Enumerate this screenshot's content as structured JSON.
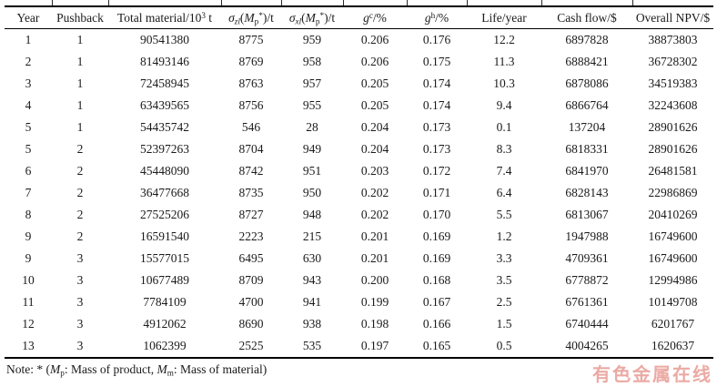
{
  "table": {
    "columns": [
      {
        "name": "year",
        "parts": [
          {
            "t": "Year"
          }
        ]
      },
      {
        "name": "pushback",
        "parts": [
          {
            "t": "Pushback"
          }
        ]
      },
      {
        "name": "total-material",
        "parts": [
          {
            "t": "Total material/10"
          },
          {
            "t": "3",
            "s": "sup"
          },
          {
            "t": " t"
          }
        ]
      },
      {
        "name": "sigma-zl",
        "parts": [
          {
            "t": "σ",
            "s": "i"
          },
          {
            "t": "zl",
            "s": "subi"
          },
          {
            "t": "("
          },
          {
            "t": "M",
            "s": "i"
          },
          {
            "t": "p",
            "s": "sub"
          },
          {
            "t": "*",
            "s": "sup"
          },
          {
            "t": ")/t"
          }
        ]
      },
      {
        "name": "sigma-xl",
        "parts": [
          {
            "t": "σ",
            "s": "i"
          },
          {
            "t": "xl",
            "s": "subi"
          },
          {
            "t": "("
          },
          {
            "t": "M",
            "s": "i"
          },
          {
            "t": "p",
            "s": "sub"
          },
          {
            "t": "*",
            "s": "sup"
          },
          {
            "t": ")/t"
          }
        ]
      },
      {
        "name": "grade-c",
        "parts": [
          {
            "t": "g",
            "s": "i"
          },
          {
            "t": "c",
            "s": "sup"
          },
          {
            "t": "/%"
          }
        ]
      },
      {
        "name": "grade-h",
        "parts": [
          {
            "t": "g",
            "s": "i"
          },
          {
            "t": "h",
            "s": "sup"
          },
          {
            "t": "/%"
          }
        ]
      },
      {
        "name": "life",
        "parts": [
          {
            "t": "Life/year"
          }
        ]
      },
      {
        "name": "cash-flow",
        "parts": [
          {
            "t": "Cash flow/$"
          }
        ]
      },
      {
        "name": "overall-npv",
        "parts": [
          {
            "t": "Overall NPV/$"
          }
        ]
      }
    ],
    "rows": [
      [
        "1",
        "1",
        "90541380",
        "8775",
        "959",
        "0.206",
        "0.176",
        "12.2",
        "6897828",
        "38873803"
      ],
      [
        "2",
        "1",
        "81493146",
        "8769",
        "958",
        "0.206",
        "0.175",
        "11.3",
        "6888421",
        "36728302"
      ],
      [
        "3",
        "1",
        "72458945",
        "8763",
        "957",
        "0.205",
        "0.174",
        "10.3",
        "6878086",
        "34519383"
      ],
      [
        "4",
        "1",
        "63439565",
        "8756",
        "955",
        "0.205",
        "0.174",
        "9.4",
        "6866764",
        "32243608"
      ],
      [
        "5",
        "1",
        "54435742",
        "546",
        "28",
        "0.204",
        "0.173",
        "0.1",
        "137204",
        "28901626"
      ],
      [
        "5",
        "2",
        "52397263",
        "8704",
        "949",
        "0.204",
        "0.173",
        "8.3",
        "6818331",
        "28901626"
      ],
      [
        "6",
        "2",
        "45448090",
        "8742",
        "951",
        "0.203",
        "0.172",
        "7.4",
        "6841970",
        "26481581"
      ],
      [
        "7",
        "2",
        "36477668",
        "8735",
        "950",
        "0.202",
        "0.171",
        "6.4",
        "6828143",
        "22986869"
      ],
      [
        "8",
        "2",
        "27525206",
        "8727",
        "948",
        "0.202",
        "0.170",
        "5.5",
        "6813067",
        "20410269"
      ],
      [
        "9",
        "2",
        "16591540",
        "2223",
        "215",
        "0.201",
        "0.169",
        "1.2",
        "1947988",
        "16749600"
      ],
      [
        "9",
        "3",
        "15577015",
        "6495",
        "630",
        "0.201",
        "0.169",
        "3.3",
        "4709361",
        "16749600"
      ],
      [
        "10",
        "3",
        "10677489",
        "8709",
        "943",
        "0.200",
        "0.168",
        "3.5",
        "6778872",
        "12994986"
      ],
      [
        "11",
        "3",
        "7784109",
        "4700",
        "941",
        "0.199",
        "0.167",
        "2.5",
        "6761361",
        "10149708"
      ],
      [
        "12",
        "3",
        "4912062",
        "8690",
        "938",
        "0.198",
        "0.166",
        "1.5",
        "6740444",
        "6201767"
      ],
      [
        "13",
        "3",
        "1062399",
        "2525",
        "535",
        "0.197",
        "0.165",
        "0.5",
        "4004265",
        "1620637"
      ]
    ]
  },
  "note": {
    "parts": [
      {
        "t": "Note: * ("
      },
      {
        "t": "M",
        "s": "i"
      },
      {
        "t": "p",
        "s": "sub"
      },
      {
        "t": ": Mass of product, "
      },
      {
        "t": "M",
        "s": "i"
      },
      {
        "t": "m",
        "s": "sub"
      },
      {
        "t": ": Mass of material)"
      }
    ]
  },
  "watermark": {
    "text": "有色金属在线",
    "color": "#de766c"
  }
}
